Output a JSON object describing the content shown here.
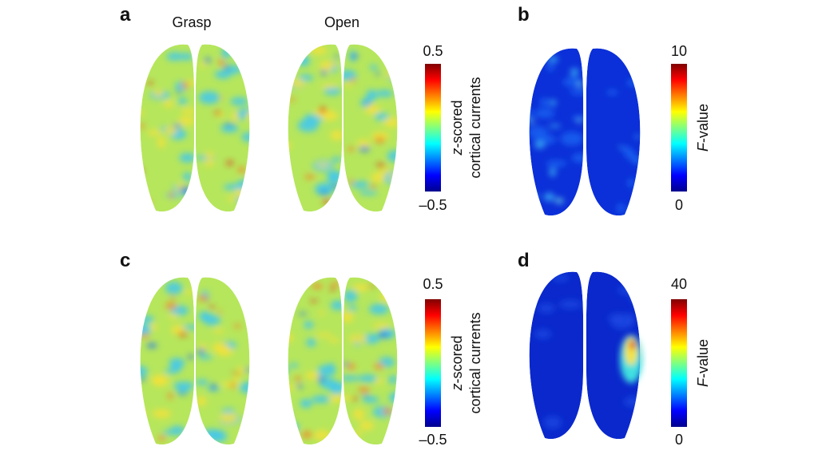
{
  "panels": [
    {
      "label": "a",
      "columns": [
        "Grasp",
        "Open"
      ],
      "colorbar": {
        "max": "0.5",
        "min": "–0.5",
        "label_italic": "z",
        "label_rest": "-scored",
        "label_line2": "cortical currents"
      }
    },
    {
      "label": "b",
      "colorbar": {
        "max": "10",
        "min": "0",
        "label_italic": "F",
        "label_rest": "-value"
      }
    },
    {
      "label": "c",
      "colorbar": {
        "max": "0.5",
        "min": "–0.5",
        "label_italic": "z",
        "label_rest": "-scored",
        "label_line2": "cortical currents"
      }
    },
    {
      "label": "d",
      "colorbar": {
        "max": "40",
        "min": "0",
        "label_italic": "F",
        "label_rest": "-value"
      }
    }
  ]
}
